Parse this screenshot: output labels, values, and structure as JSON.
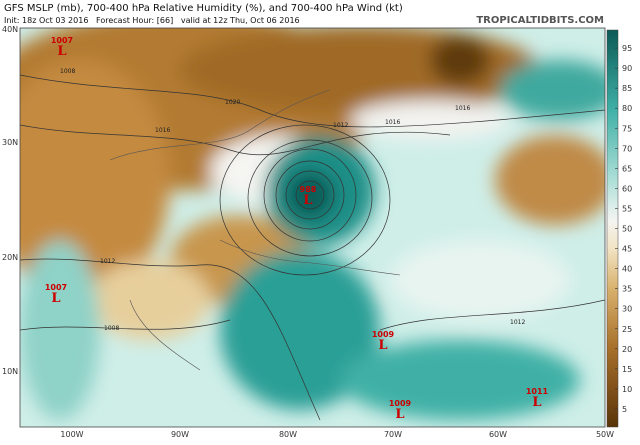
{
  "header": {
    "title": "GFS MSLP (mb), 700-400 hPa Relative Humidity (%), and 700-400 hPa Wind (kt)",
    "subtitle": "Init: 18z Oct 03 2016   Forecast Hour: [66]   valid at 12z Thu, Oct 06 2016",
    "site": "TROPICALTIDBITS.COM"
  },
  "map": {
    "latitude_labels": [
      "40N",
      "30N",
      "20N",
      "10N"
    ],
    "longitude_labels": [
      "100W",
      "90W",
      "80W",
      "70W",
      "60W",
      "50W"
    ],
    "lows": [
      {
        "pressure": "1007",
        "symbol": "L"
      },
      {
        "pressure": "988",
        "symbol": "L"
      },
      {
        "pressure": "1007",
        "symbol": "L"
      },
      {
        "pressure": "1009",
        "symbol": "L"
      },
      {
        "pressure": "1009",
        "symbol": "L"
      },
      {
        "pressure": "1011",
        "symbol": "L"
      }
    ],
    "isobar_labels": [
      "1008",
      "1020",
      "1016",
      "1012",
      "1016",
      "1016",
      "1012",
      "1008",
      "1012"
    ]
  },
  "colorbar": {
    "ticks": [
      5,
      10,
      15,
      20,
      25,
      30,
      35,
      40,
      45,
      50,
      55,
      60,
      65,
      70,
      75,
      80,
      85,
      90,
      95
    ]
  }
}
